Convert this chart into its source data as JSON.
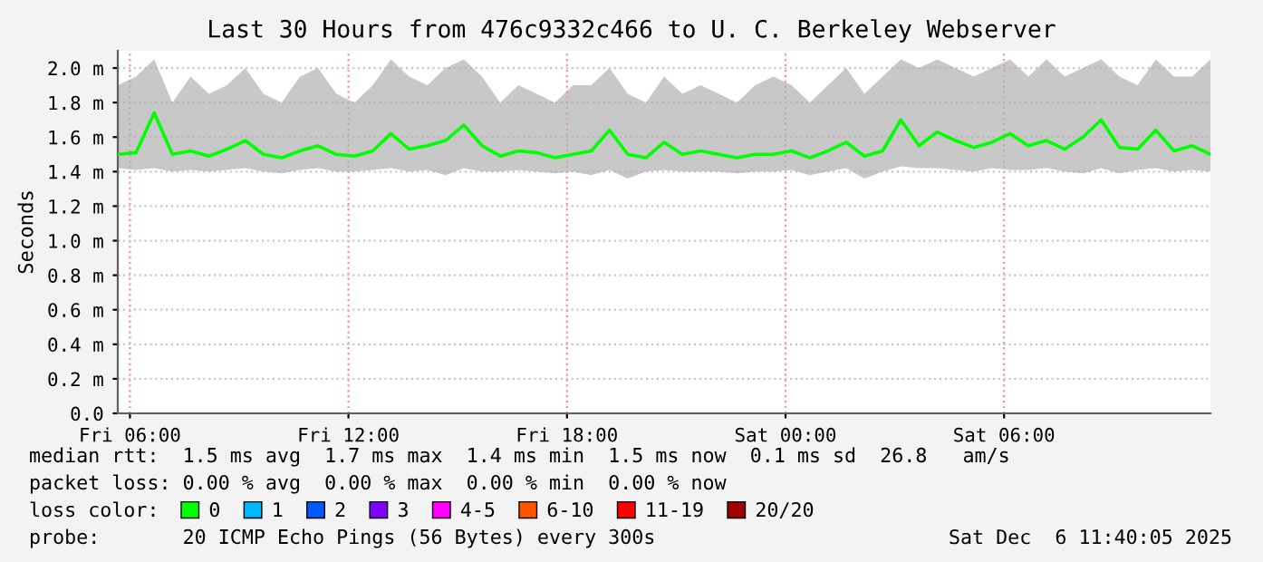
{
  "chart_data": {
    "type": "line",
    "title": "Last 30 Hours from 476c9332c466 to U. C. Berkeley Webserver",
    "ylabel": "Seconds",
    "x": [
      "2025-12-05T05:40",
      "2025-12-05T06:10",
      "2025-12-05T06:40",
      "2025-12-05T07:10",
      "2025-12-05T07:40",
      "2025-12-05T08:10",
      "2025-12-05T08:40",
      "2025-12-05T09:10",
      "2025-12-05T09:40",
      "2025-12-05T10:10",
      "2025-12-05T10:40",
      "2025-12-05T11:10",
      "2025-12-05T11:40",
      "2025-12-05T12:10",
      "2025-12-05T12:40",
      "2025-12-05T13:10",
      "2025-12-05T13:40",
      "2025-12-05T14:10",
      "2025-12-05T14:40",
      "2025-12-05T15:10",
      "2025-12-05T15:40",
      "2025-12-05T16:10",
      "2025-12-05T16:40",
      "2025-12-05T17:10",
      "2025-12-05T17:40",
      "2025-12-05T18:10",
      "2025-12-05T18:40",
      "2025-12-05T19:10",
      "2025-12-05T19:40",
      "2025-12-05T20:10",
      "2025-12-05T20:40",
      "2025-12-05T21:10",
      "2025-12-05T21:40",
      "2025-12-05T22:10",
      "2025-12-05T22:40",
      "2025-12-05T23:10",
      "2025-12-05T23:40",
      "2025-12-06T00:10",
      "2025-12-06T00:40",
      "2025-12-06T01:10",
      "2025-12-06T01:40",
      "2025-12-06T02:10",
      "2025-12-06T02:40",
      "2025-12-06T03:10",
      "2025-12-06T03:40",
      "2025-12-06T04:10",
      "2025-12-06T04:40",
      "2025-12-06T05:10",
      "2025-12-06T05:40",
      "2025-12-06T06:10",
      "2025-12-06T06:40",
      "2025-12-06T07:10",
      "2025-12-06T07:40",
      "2025-12-06T08:10",
      "2025-12-06T08:40",
      "2025-12-06T09:10",
      "2025-12-06T09:40",
      "2025-12-06T10:10",
      "2025-12-06T10:40",
      "2025-12-06T11:10",
      "2025-12-06T11:40"
    ],
    "series": [
      {
        "name": "0",
        "color": "#00ff00",
        "values": [
          1.5,
          1.51,
          1.74,
          1.5,
          1.52,
          1.49,
          1.53,
          1.58,
          1.5,
          1.48,
          1.52,
          1.55,
          1.5,
          1.49,
          1.52,
          1.62,
          1.53,
          1.55,
          1.58,
          1.67,
          1.55,
          1.49,
          1.52,
          1.51,
          1.48,
          1.5,
          1.52,
          1.64,
          1.5,
          1.48,
          1.57,
          1.5,
          1.52,
          1.5,
          1.48,
          1.5,
          1.5,
          1.52,
          1.48,
          1.52,
          1.57,
          1.49,
          1.52,
          1.7,
          1.55,
          1.63,
          1.58,
          1.54,
          1.57,
          1.62,
          1.55,
          1.58,
          1.53,
          1.6,
          1.7,
          1.54,
          1.53,
          1.64,
          1.52,
          1.55,
          1.5
        ],
        "lower": [
          1.42,
          1.41,
          1.42,
          1.4,
          1.41,
          1.4,
          1.41,
          1.42,
          1.4,
          1.39,
          1.41,
          1.42,
          1.4,
          1.4,
          1.41,
          1.42,
          1.4,
          1.41,
          1.38,
          1.42,
          1.4,
          1.4,
          1.41,
          1.4,
          1.39,
          1.4,
          1.38,
          1.41,
          1.36,
          1.4,
          1.41,
          1.4,
          1.4,
          1.4,
          1.39,
          1.4,
          1.4,
          1.41,
          1.38,
          1.4,
          1.42,
          1.36,
          1.4,
          1.43,
          1.42,
          1.42,
          1.41,
          1.4,
          1.42,
          1.41,
          1.41,
          1.42,
          1.4,
          1.39,
          1.42,
          1.39,
          1.41,
          1.42,
          1.4,
          1.41,
          1.4
        ],
        "upper": [
          1.9,
          1.95,
          2.05,
          1.8,
          1.95,
          1.85,
          1.9,
          2.0,
          1.85,
          1.8,
          1.95,
          2.0,
          1.85,
          1.8,
          1.9,
          2.05,
          1.95,
          1.9,
          2.0,
          2.05,
          1.95,
          1.8,
          1.9,
          1.85,
          1.8,
          1.9,
          1.9,
          2.0,
          1.85,
          1.8,
          1.95,
          1.85,
          1.9,
          1.85,
          1.8,
          1.9,
          1.95,
          1.9,
          1.8,
          1.9,
          2.0,
          1.85,
          1.95,
          2.05,
          2.0,
          2.05,
          2.0,
          1.95,
          2.0,
          2.05,
          1.95,
          2.05,
          1.95,
          2.0,
          2.05,
          1.95,
          1.9,
          2.05,
          1.95,
          1.95,
          2.05
        ]
      },
      {
        "name": "1",
        "color": "#00b8ff",
        "values": [
          null,
          null,
          null,
          null,
          null,
          null,
          null,
          null,
          null,
          null,
          null,
          null,
          null,
          null,
          null,
          null,
          null,
          null,
          null,
          null,
          null,
          null,
          null,
          null,
          null,
          null,
          null,
          null,
          null,
          null,
          null,
          null,
          null,
          null,
          null,
          null,
          null,
          null,
          null,
          null,
          null,
          null,
          null,
          null,
          null,
          null,
          null,
          null,
          null,
          null,
          null,
          null,
          null,
          null,
          null,
          null,
          null,
          null,
          null,
          null,
          null
        ]
      },
      {
        "name": "2",
        "color": "#0059ff",
        "values": [
          null,
          null,
          null,
          null,
          null,
          null,
          null,
          null,
          null,
          null,
          null,
          null,
          null,
          null,
          null,
          null,
          null,
          null,
          null,
          null,
          null,
          null,
          null,
          null,
          null,
          null,
          null,
          null,
          null,
          null,
          null,
          null,
          null,
          null,
          null,
          null,
          null,
          null,
          null,
          null,
          null,
          null,
          null,
          null,
          null,
          null,
          null,
          null,
          null,
          null,
          null,
          null,
          null,
          null,
          null,
          null,
          null,
          null,
          null,
          null,
          null
        ]
      },
      {
        "name": "3",
        "color": "#7e00ff",
        "values": [
          null,
          null,
          null,
          null,
          null,
          null,
          null,
          null,
          null,
          null,
          null,
          null,
          null,
          null,
          null,
          null,
          null,
          null,
          null,
          null,
          null,
          null,
          null,
          null,
          null,
          null,
          null,
          null,
          null,
          null,
          null,
          null,
          null,
          null,
          null,
          null,
          null,
          null,
          null,
          null,
          null,
          null,
          null,
          null,
          null,
          null,
          null,
          null,
          null,
          null,
          null,
          null,
          null,
          null,
          null,
          null,
          null,
          null,
          null,
          null,
          null
        ]
      },
      {
        "name": "4-5",
        "color": "#ff00ff",
        "values": [
          null,
          null,
          null,
          null,
          null,
          null,
          null,
          null,
          null,
          null,
          null,
          null,
          null,
          null,
          null,
          null,
          null,
          null,
          null,
          null,
          null,
          null,
          null,
          null,
          null,
          null,
          null,
          null,
          null,
          null,
          null,
          null,
          null,
          null,
          null,
          null,
          null,
          null,
          null,
          null,
          null,
          null,
          null,
          null,
          null,
          null,
          null,
          null,
          null,
          null,
          null,
          null,
          null,
          null,
          null,
          null,
          null,
          null,
          null,
          null,
          null
        ]
      },
      {
        "name": "6-10",
        "color": "#ff5500",
        "values": [
          null,
          null,
          null,
          null,
          null,
          null,
          null,
          null,
          null,
          null,
          null,
          null,
          null,
          null,
          null,
          null,
          null,
          null,
          null,
          null,
          null,
          null,
          null,
          null,
          null,
          null,
          null,
          null,
          null,
          null,
          null,
          null,
          null,
          null,
          null,
          null,
          null,
          null,
          null,
          null,
          null,
          null,
          null,
          null,
          null,
          null,
          null,
          null,
          null,
          null,
          null,
          null,
          null,
          null,
          null,
          null,
          null,
          null,
          null,
          null,
          null
        ]
      },
      {
        "name": "11-19",
        "color": "#ff0000",
        "values": [
          null,
          null,
          null,
          null,
          null,
          null,
          null,
          null,
          null,
          null,
          null,
          null,
          null,
          null,
          null,
          null,
          null,
          null,
          null,
          null,
          null,
          null,
          null,
          null,
          null,
          null,
          null,
          null,
          null,
          null,
          null,
          null,
          null,
          null,
          null,
          null,
          null,
          null,
          null,
          null,
          null,
          null,
          null,
          null,
          null,
          null,
          null,
          null,
          null,
          null,
          null,
          null,
          null,
          null,
          null,
          null,
          null,
          null,
          null,
          null,
          null
        ]
      },
      {
        "name": "20/20",
        "color": "#a10000",
        "values": [
          null,
          null,
          null,
          null,
          null,
          null,
          null,
          null,
          null,
          null,
          null,
          null,
          null,
          null,
          null,
          null,
          null,
          null,
          null,
          null,
          null,
          null,
          null,
          null,
          null,
          null,
          null,
          null,
          null,
          null,
          null,
          null,
          null,
          null,
          null,
          null,
          null,
          null,
          null,
          null,
          null,
          null,
          null,
          null,
          null,
          null,
          null,
          null,
          null,
          null,
          null,
          null,
          null,
          null,
          null,
          null,
          null,
          null,
          null,
          null,
          null
        ]
      }
    ],
    "legend": "bottom",
    "legend_title": "loss color:",
    "xlim": [
      "2025-12-05T05:40",
      "2025-12-06T11:40"
    ],
    "xticks": [
      {
        "value": "2025-12-05T06:00",
        "label": "Fri 06:00"
      },
      {
        "value": "2025-12-05T12:00",
        "label": "Fri 12:00"
      },
      {
        "value": "2025-12-05T18:00",
        "label": "Fri 18:00"
      },
      {
        "value": "2025-12-06T00:00",
        "label": "Sat 00:00"
      },
      {
        "value": "2025-12-06T06:00",
        "label": "Sat 06:00"
      }
    ],
    "ylim": [
      0,
      2.1
    ],
    "yticks": [
      {
        "value": 0,
        "label": "0.0"
      },
      {
        "value": 0.2,
        "label": "0.2 m"
      },
      {
        "value": 0.4,
        "label": "0.4 m"
      },
      {
        "value": 0.6,
        "label": "0.6 m"
      },
      {
        "value": 0.8,
        "label": "0.8 m"
      },
      {
        "value": 1.0,
        "label": "1.0 m"
      },
      {
        "value": 1.2,
        "label": "1.2 m"
      },
      {
        "value": 1.4,
        "label": "1.4 m"
      },
      {
        "value": 1.6,
        "label": "1.6 m"
      },
      {
        "value": 1.8,
        "label": "1.8 m"
      },
      {
        "value": 2.0,
        "label": "2.0 m"
      }
    ],
    "grid": true,
    "annotations": [
      "median rtt:  1.5 ms avg  1.7 ms max  1.4 ms min  1.5 ms now  0.1 ms sd  26.8   am/s",
      "packet loss: 0.00 % avg  0.00 % max  0.00 % min  0.00 % now",
      "probe:       20 ICMP Echo Pings (56 Bytes) every 300s",
      "Sat Dec  6 11:40:05 2025"
    ]
  }
}
